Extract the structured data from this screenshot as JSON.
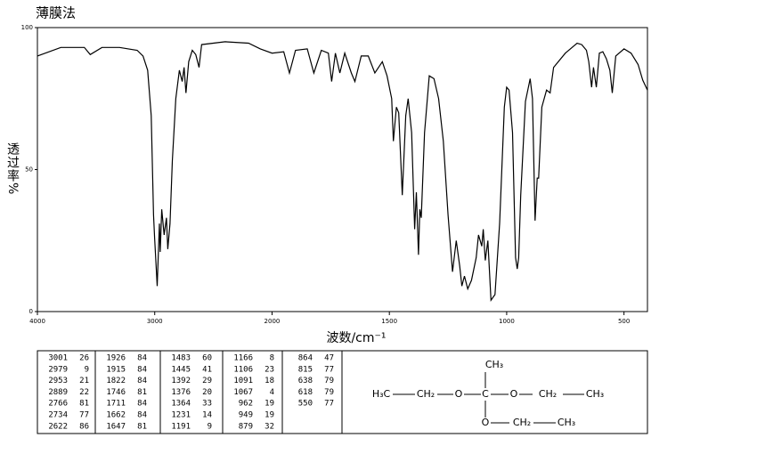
{
  "chart_data": {
    "type": "line",
    "title": "薄膜法",
    "x_label": "波数/cm⁻¹",
    "y_label": "透过率%",
    "color": "#000000",
    "grid": false,
    "xlim": [
      4000,
      400
    ],
    "x_scale_break": 2000,
    "xticks": [
      4000,
      3000,
      2000,
      1500,
      1000,
      500
    ],
    "ylim": [
      0,
      100
    ],
    "yticks": [
      0,
      50,
      100
    ],
    "x": [
      4000,
      3800,
      3600,
      3550,
      3450,
      3300,
      3150,
      3100,
      3060,
      3030,
      3010,
      3001,
      2979,
      2960,
      2953,
      2940,
      2920,
      2900,
      2889,
      2870,
      2850,
      2820,
      2790,
      2766,
      2750,
      2734,
      2710,
      2680,
      2650,
      2622,
      2600,
      2400,
      2200,
      2100,
      2000,
      1950,
      1926,
      1900,
      1850,
      1822,
      1790,
      1760,
      1746,
      1730,
      1711,
      1690,
      1662,
      1647,
      1620,
      1590,
      1562,
      1530,
      1510,
      1490,
      1483,
      1470,
      1460,
      1445,
      1430,
      1420,
      1405,
      1392,
      1385,
      1376,
      1370,
      1364,
      1350,
      1330,
      1310,
      1290,
      1270,
      1250,
      1231,
      1215,
      1200,
      1191,
      1180,
      1166,
      1150,
      1130,
      1120,
      1106,
      1100,
      1091,
      1080,
      1067,
      1050,
      1030,
      1010,
      1000,
      990,
      975,
      962,
      955,
      949,
      940,
      920,
      900,
      890,
      879,
      870,
      864,
      850,
      830,
      815,
      800,
      750,
      700,
      680,
      660,
      650,
      638,
      630,
      618,
      605,
      590,
      575,
      560,
      550,
      535,
      500,
      470,
      440,
      420,
      400
    ],
    "values": [
      90,
      93,
      93,
      90.5,
      93,
      93,
      92,
      90,
      85,
      69,
      34,
      26,
      9,
      31,
      21,
      36,
      27,
      33,
      22,
      31,
      53,
      75,
      85,
      81,
      86,
      77,
      88,
      92,
      90.5,
      86,
      94,
      95,
      94.5,
      92.5,
      91,
      91.5,
      84,
      92,
      92.5,
      84,
      92,
      91,
      81,
      91,
      84,
      91,
      84,
      81,
      90,
      90,
      84,
      88,
      83,
      75,
      60,
      72,
      70,
      41,
      69,
      75,
      63,
      29,
      42,
      20,
      36,
      33,
      63,
      83,
      82,
      75,
      60,
      34,
      14,
      25,
      16,
      9,
      12.5,
      8,
      11,
      19,
      27,
      23,
      29,
      18,
      25,
      4,
      6,
      31,
      72,
      79,
      78,
      63,
      19,
      15,
      19,
      41,
      74,
      82,
      75,
      32,
      47,
      47,
      72,
      78,
      77,
      86,
      91,
      94.5,
      94,
      92,
      88,
      79,
      86,
      79,
      91,
      91.5,
      89,
      85,
      77,
      90,
      92.5,
      91,
      87,
      81.5,
      78
    ]
  },
  "peak_table": {
    "columns": [
      [
        [
          3001,
          26
        ],
        [
          2979,
          9
        ],
        [
          2953,
          21
        ],
        [
          2889,
          22
        ],
        [
          2766,
          81
        ],
        [
          2734,
          77
        ],
        [
          2622,
          86
        ]
      ],
      [
        [
          1926,
          84
        ],
        [
          1915,
          84
        ],
        [
          1822,
          84
        ],
        [
          1746,
          81
        ],
        [
          1711,
          84
        ],
        [
          1662,
          84
        ],
        [
          1647,
          81
        ]
      ],
      [
        [
          1483,
          60
        ],
        [
          1445,
          41
        ],
        [
          1392,
          29
        ],
        [
          1376,
          20
        ],
        [
          1364,
          33
        ],
        [
          1231,
          14
        ],
        [
          1191,
          9
        ]
      ],
      [
        [
          1166,
          8
        ],
        [
          1106,
          23
        ],
        [
          1091,
          18
        ],
        [
          1067,
          4
        ],
        [
          962,
          19
        ],
        [
          949,
          19
        ],
        [
          879,
          32
        ]
      ],
      [
        [
          864,
          47
        ],
        [
          815,
          77
        ],
        [
          638,
          79
        ],
        [
          618,
          79
        ],
        [
          550,
          77
        ]
      ]
    ]
  },
  "structure": {
    "nodes": [
      {
        "label": "H₃C"
      },
      {
        "label": "CH₂"
      },
      {
        "label": "O"
      },
      {
        "label": "C"
      },
      {
        "label": "O"
      },
      {
        "label": "CH₂"
      },
      {
        "label": "CH₃"
      },
      {
        "label": "CH₃"
      },
      {
        "label": "O"
      },
      {
        "label": "CH₂"
      },
      {
        "label": "CH₃"
      }
    ]
  }
}
